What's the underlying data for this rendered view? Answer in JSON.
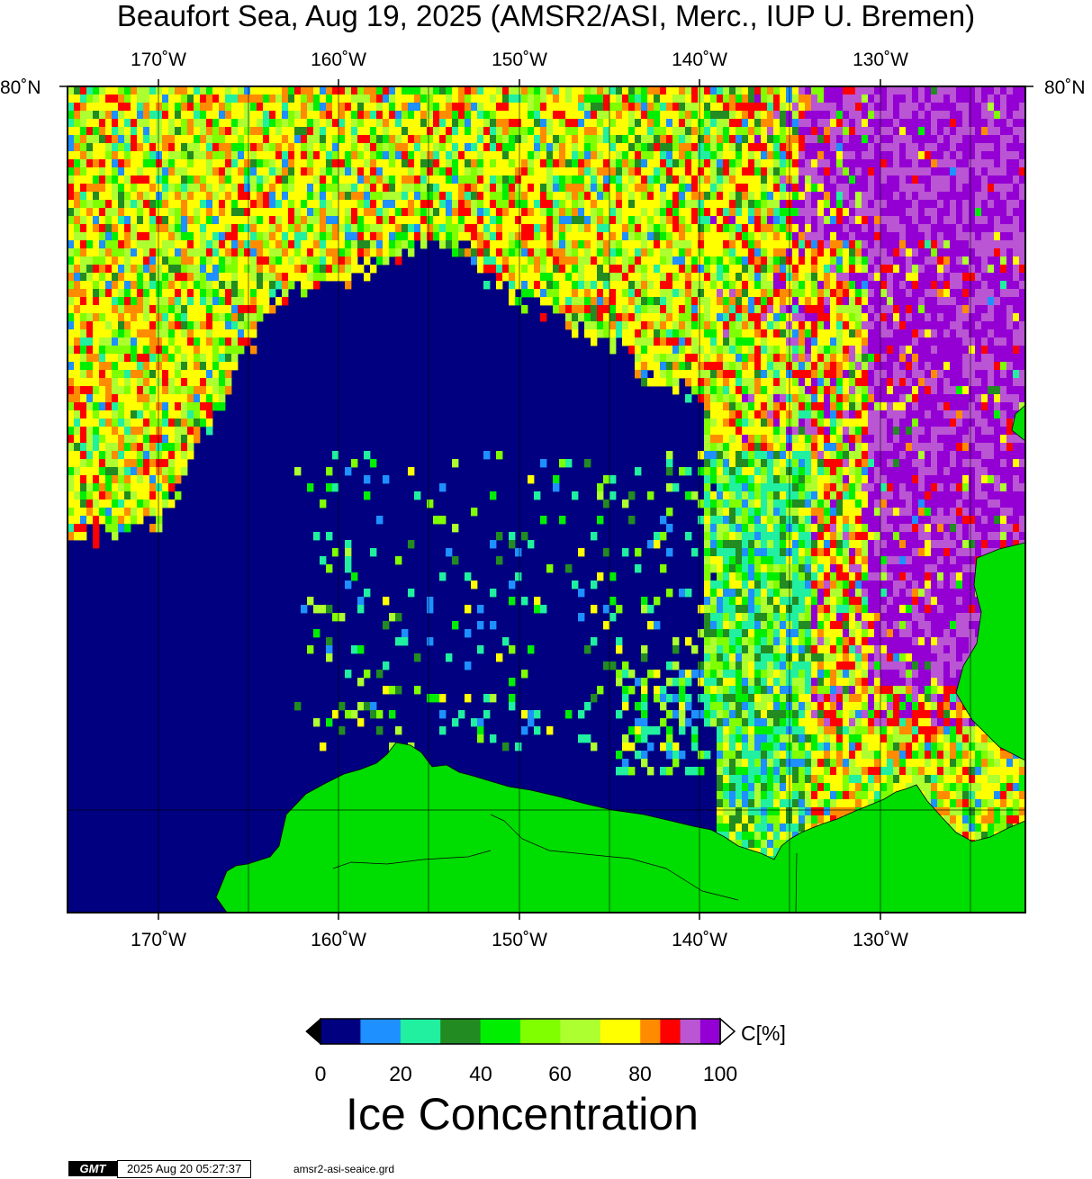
{
  "title": "Beaufort Sea, Aug 19, 2025 (AMSR2/ASI, Merc., IUP U. Bremen)",
  "map": {
    "lon_labels_top": [
      "170˚W",
      "160˚W",
      "150˚W",
      "140˚W",
      "130˚W"
    ],
    "lon_labels_bottom": [
      "170˚W",
      "160˚W",
      "150˚W",
      "140˚W",
      "130˚W"
    ],
    "lat_label_left": "80˚N",
    "lat_label_right": "80˚N",
    "ocean_color": "#000080",
    "land_color": "#00dd00"
  },
  "colorbar": {
    "ticks": [
      "0",
      "20",
      "40",
      "60",
      "80",
      "100"
    ],
    "unit": "C[%]",
    "title": "Ice Concentration",
    "colors": [
      "#000080",
      "#1e90ff",
      "#20f0a0",
      "#228b22",
      "#00ee00",
      "#7fff00",
      "#adff2f",
      "#ffff00",
      "#ff8c00",
      "#ff0000",
      "#ba55d3",
      "#9400d3"
    ],
    "under_color": "#000000",
    "over_color": "#ffffff"
  },
  "footer": {
    "logo": "GMT",
    "timestamp": "2025 Aug 20 05:27:37",
    "grid_file": "amsr2-asi-seaice.grd"
  }
}
